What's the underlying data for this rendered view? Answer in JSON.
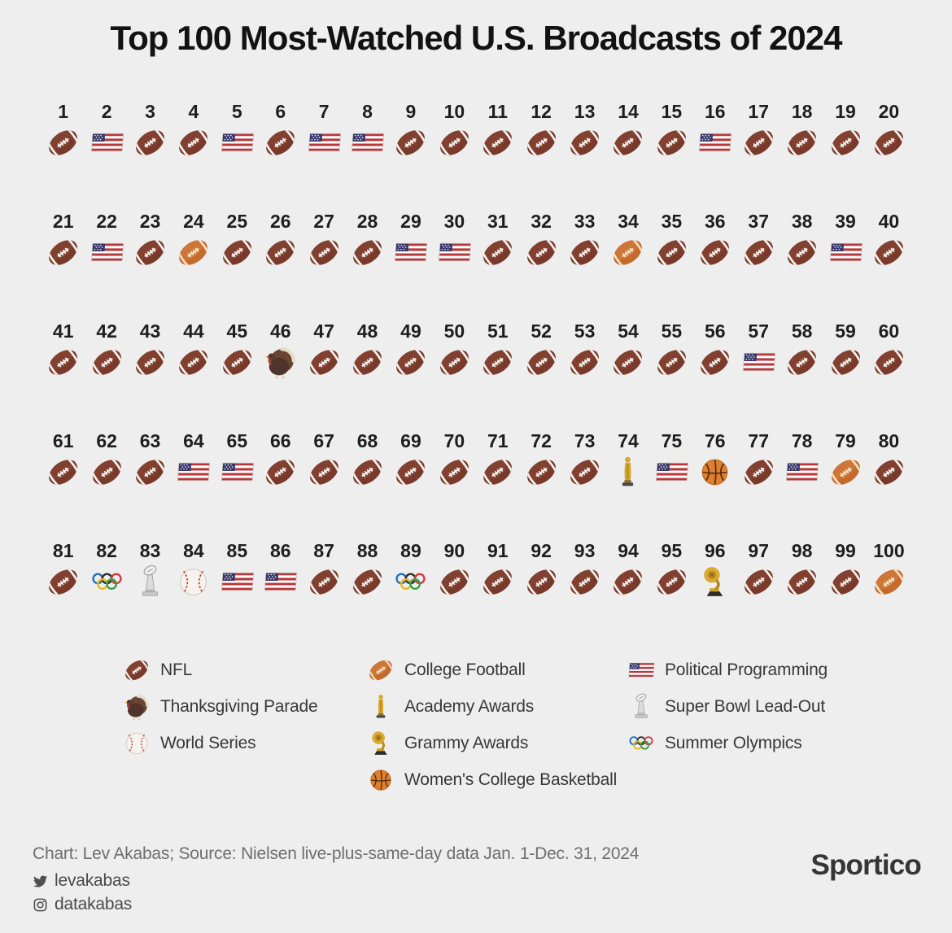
{
  "title": "Top 100 Most-Watched U.S. Broadcasts of 2024",
  "chart_data": {
    "type": "pictogram",
    "title": "Top 100 Most-Watched U.S. Broadcasts of 2024",
    "unit": "1 icon = 1 broadcast, ranked 1-100 by viewership",
    "layout": {
      "rows": 5,
      "columns": 20
    },
    "categories": {
      "nfl": {
        "label": "NFL",
        "icon": "football-icon"
      },
      "college": {
        "label": "College Football",
        "icon": "college-football-icon"
      },
      "political": {
        "label": "Political Programming",
        "icon": "us-flag-icon"
      },
      "thanksgiving": {
        "label": "Thanksgiving Parade",
        "icon": "turkey-icon"
      },
      "academy": {
        "label": "Academy Awards",
        "icon": "oscar-statuette-icon"
      },
      "superbowl": {
        "label": "Super Bowl Lead-Out",
        "icon": "lombardi-trophy-icon"
      },
      "worldseries": {
        "label": "World Series",
        "icon": "baseball-icon"
      },
      "grammy": {
        "label": "Grammy Awards",
        "icon": "gramophone-icon"
      },
      "olympics": {
        "label": "Summer Olympics",
        "icon": "olympic-rings-icon"
      },
      "wbb": {
        "label": "Women's College Basketball",
        "icon": "basketball-icon"
      }
    },
    "rankings": [
      "nfl",
      "political",
      "nfl",
      "nfl",
      "political",
      "nfl",
      "political",
      "political",
      "nfl",
      "nfl",
      "nfl",
      "nfl",
      "nfl",
      "nfl",
      "nfl",
      "political",
      "nfl",
      "nfl",
      "nfl",
      "nfl",
      "nfl",
      "political",
      "nfl",
      "college",
      "nfl",
      "nfl",
      "nfl",
      "nfl",
      "political",
      "political",
      "nfl",
      "nfl",
      "nfl",
      "college",
      "nfl",
      "nfl",
      "nfl",
      "nfl",
      "political",
      "nfl",
      "nfl",
      "nfl",
      "nfl",
      "nfl",
      "nfl",
      "thanksgiving",
      "nfl",
      "nfl",
      "nfl",
      "nfl",
      "nfl",
      "nfl",
      "nfl",
      "nfl",
      "nfl",
      "nfl",
      "political",
      "nfl",
      "nfl",
      "nfl",
      "nfl",
      "nfl",
      "nfl",
      "political",
      "political",
      "nfl",
      "nfl",
      "nfl",
      "nfl",
      "nfl",
      "nfl",
      "nfl",
      "nfl",
      "academy",
      "political",
      "wbb",
      "nfl",
      "political",
      "college",
      "nfl",
      "nfl",
      "olympics",
      "superbowl",
      "worldseries",
      "political",
      "political",
      "nfl",
      "nfl",
      "olympics",
      "nfl",
      "nfl",
      "nfl",
      "nfl",
      "nfl",
      "nfl",
      "grammy",
      "nfl",
      "nfl",
      "nfl",
      "college"
    ],
    "counts": {
      "nfl": 72,
      "political": 16,
      "college": 4,
      "olympics": 2,
      "thanksgiving": 1,
      "academy": 1,
      "wbb": 1,
      "superbowl": 1,
      "worldseries": 1,
      "grammy": 1
    }
  },
  "legend": {
    "columns": [
      [
        "nfl",
        "thanksgiving",
        "worldseries"
      ],
      [
        "college",
        "academy",
        "grammy",
        "wbb"
      ],
      [
        "political",
        "superbowl",
        "olympics"
      ]
    ]
  },
  "footer": {
    "credit": "Chart: Lev Akabas; Source: Nielsen live-plus-same-day data Jan. 1-Dec. 31, 2024",
    "twitter_handle": "levakabas",
    "instagram_handle": "datakabas",
    "brand": "Sportico"
  },
  "colors": {
    "background": "#efeeee",
    "nfl_ball": "#793a2b",
    "college_ball": "#c56a2d",
    "flag_red": "#b8393c",
    "flag_blue": "#39386c",
    "gold": "#d7a62c",
    "basketball_orange": "#de8030"
  }
}
